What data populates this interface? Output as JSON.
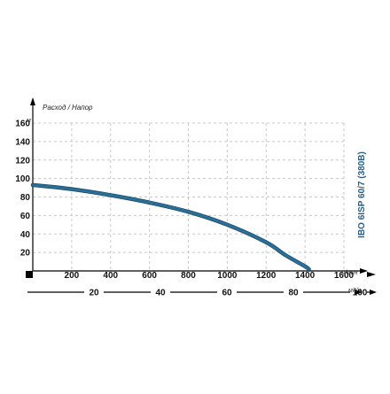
{
  "chart_data": {
    "type": "line",
    "title": "IBO 6ISP 60/7 (380B)",
    "ylabel": "Расход / Напор",
    "y_unit": "м",
    "ylim": [
      0,
      160
    ],
    "y_ticks": [
      "160",
      "140",
      "120",
      "100",
      "80",
      "60",
      "40",
      "20"
    ],
    "xlim": [
      0,
      1600
    ],
    "x_ticks": [
      "200",
      "400",
      "600",
      "800",
      "1000",
      "1200",
      "1400",
      "1600"
    ],
    "x_unit": "л/мин",
    "x2lim": [
      0,
      100
    ],
    "x2_ticks": [
      "20",
      "40",
      "60",
      "80",
      "100"
    ],
    "x2_unit": "м3/ч",
    "grid": true,
    "series": [
      {
        "color": "#2a6f97",
        "x": [
          0,
          200,
          400,
          600,
          800,
          1000,
          1200,
          1300,
          1400,
          1420
        ],
        "y": [
          93,
          88.5,
          82,
          74,
          64,
          50,
          31,
          17,
          5,
          2
        ]
      }
    ]
  }
}
